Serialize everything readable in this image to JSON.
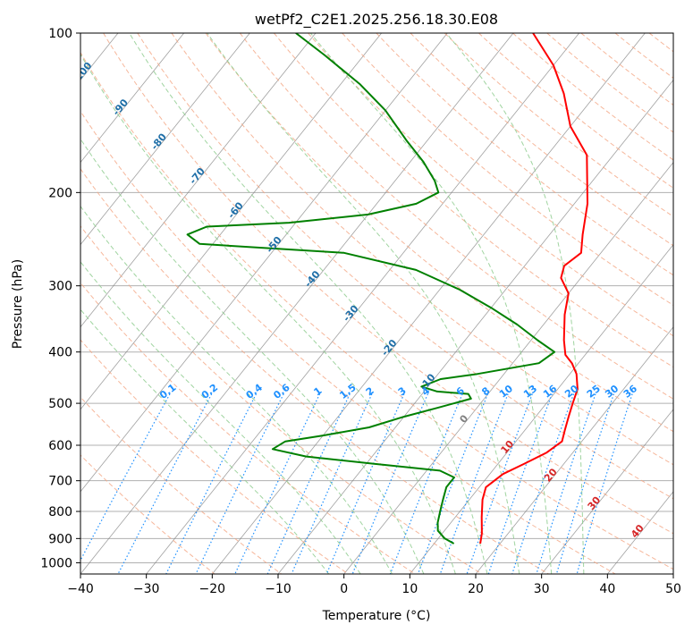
{
  "chart_data": {
    "type": "line",
    "title": "wetPf2_C2E1.2025.256.18.30.E08",
    "xlabel": "Temperature (°C)",
    "ylabel": "Pressure (hPa)",
    "xlim": [
      -40,
      50
    ],
    "ylim": [
      1050,
      100
    ],
    "y_scale": "log",
    "x_ticks": [
      -40,
      -30,
      -20,
      -10,
      0,
      10,
      20,
      30,
      40,
      50
    ],
    "y_ticks": [
      100,
      200,
      300,
      400,
      500,
      600,
      700,
      800,
      900,
      1000
    ],
    "grid": true,
    "skew": true,
    "series": [
      {
        "color": "#ff0000",
        "role": "temperature",
        "points": [
          [
            17,
            920
          ],
          [
            16,
            880
          ],
          [
            14,
            820
          ],
          [
            12,
            760
          ],
          [
            11,
            720
          ],
          [
            12,
            680
          ],
          [
            14,
            650
          ],
          [
            16,
            620
          ],
          [
            17,
            590
          ],
          [
            16,
            560
          ],
          [
            15,
            530
          ],
          [
            14,
            500
          ],
          [
            13,
            470
          ],
          [
            11,
            440
          ],
          [
            9,
            420
          ],
          [
            7,
            405
          ],
          [
            5,
            380
          ],
          [
            2,
            340
          ],
          [
            0,
            310
          ],
          [
            -3,
            290
          ],
          [
            -4,
            275
          ],
          [
            -3,
            260
          ],
          [
            -5,
            240
          ],
          [
            -8,
            210
          ],
          [
            -14,
            170
          ],
          [
            -20,
            150
          ],
          [
            -25,
            130
          ],
          [
            -30,
            115
          ],
          [
            -37,
            100
          ]
        ]
      },
      {
        "color": "#008000",
        "role": "dewpoint",
        "points": [
          [
            13,
            920
          ],
          [
            11,
            900
          ],
          [
            9,
            870
          ],
          [
            8,
            840
          ],
          [
            7,
            800
          ],
          [
            6,
            760
          ],
          [
            5,
            720
          ],
          [
            5,
            690
          ],
          [
            2,
            670
          ],
          [
            -9,
            650
          ],
          [
            -20,
            630
          ],
          [
            -26,
            610
          ],
          [
            -25,
            590
          ],
          [
            -20,
            575
          ],
          [
            -14,
            555
          ],
          [
            -10,
            530
          ],
          [
            -6,
            510
          ],
          [
            -2,
            490
          ],
          [
            -3,
            480
          ],
          [
            -8,
            475
          ],
          [
            -11,
            465
          ],
          [
            -9,
            450
          ],
          [
            -4,
            440
          ],
          [
            4,
            420
          ],
          [
            5,
            400
          ],
          [
            1,
            380
          ],
          [
            -4,
            355
          ],
          [
            -10,
            330
          ],
          [
            -17,
            305
          ],
          [
            -26,
            280
          ],
          [
            -39,
            260
          ],
          [
            -62,
            250
          ],
          [
            -65,
            240
          ],
          [
            -63,
            232
          ],
          [
            -51,
            228
          ],
          [
            -40,
            220
          ],
          [
            -34,
            210
          ],
          [
            -32,
            200
          ],
          [
            -34,
            190
          ],
          [
            -38,
            175
          ],
          [
            -43,
            160
          ],
          [
            -50,
            140
          ],
          [
            -57,
            125
          ],
          [
            -66,
            110
          ],
          [
            -73,
            100
          ]
        ]
      }
    ],
    "dry_adiabats_K": [
      250,
      260,
      270,
      280,
      290,
      300,
      310,
      320,
      330,
      340,
      350,
      360,
      370,
      380,
      390,
      400,
      410,
      420,
      430,
      440,
      450,
      460,
      470,
      480,
      490,
      500
    ],
    "moist_adiabats_C": [
      -5,
      0,
      5,
      10,
      15,
      20,
      25,
      30,
      35
    ],
    "mixing_ratio_labels": [
      "0.1",
      "0.2",
      "0.4",
      "0.6",
      "1",
      "1.5",
      "2",
      "3",
      "4",
      "6",
      "8",
      "10",
      "13",
      "16",
      "20",
      "25",
      "30",
      "36"
    ],
    "wetbulb_isotherm_labels": [
      "-100",
      "-90",
      "-80",
      "-70",
      "-60",
      "-50",
      "-40",
      "-30",
      "-20",
      "-10"
    ],
    "wetbulb_isotherm_values": [
      -100,
      -90,
      -80,
      -70,
      -60,
      -50,
      -40,
      -30,
      -20,
      -10
    ],
    "warm_isotherm_labels": [
      "0",
      "10",
      "20",
      "30",
      "40"
    ],
    "warm_isotherm_values": [
      0,
      10,
      20,
      30,
      40
    ],
    "colors": {
      "temperature": "#ff0000",
      "dewpoint": "#008000",
      "skewed_isotherm": "#808080",
      "dry_adiabat": "#f4a582",
      "moist_adiabat": "#8fcc8f",
      "mixing_ratio": "#1e90ff",
      "cold_label": "#1f6fa8",
      "warm_label": "#d62728",
      "zero_label": "#808080"
    }
  }
}
